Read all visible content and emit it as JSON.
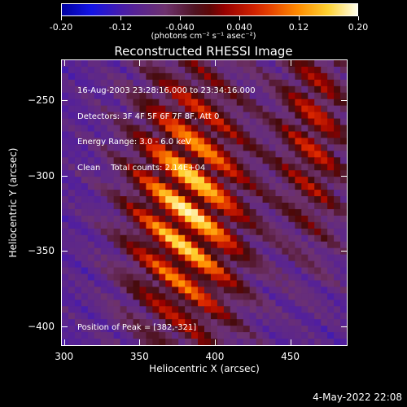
{
  "chart_data": {
    "type": "heatmap",
    "title": "Reconstructed RHESSI Image",
    "xlabel": "Heliocentric X (arcsec)",
    "ylabel": "Heliocentric Y (arcsec)",
    "xlim": [
      298,
      488
    ],
    "ylim": [
      -413,
      -223
    ],
    "x_ticks": [
      "300",
      "350",
      "400",
      "450"
    ],
    "y_ticks": [
      "-250",
      "-300",
      "-350",
      "-400"
    ],
    "colorbar": {
      "range": [
        -0.2,
        0.2
      ],
      "ticks": [
        "-0.20",
        "-0.12",
        "-0.040",
        "0.040",
        "0.12",
        "0.20"
      ],
      "unit": "(photons cm⁻² s⁻¹ asec⁻²)"
    },
    "annotation_lines": [
      "16-Aug-2003 23:28:16.000 to 23:34:16.000",
      "Detectors: 3F 4F 5F 6F 7F 8F, Att 0",
      "Energy Range: 3.0 - 6.0 keV",
      "Clean    Total counts: 2.14E+04"
    ],
    "peak_text": "Position of Peak = [382,-321]",
    "peak": [
      382,
      -321
    ],
    "grid": false
  },
  "footer": {
    "date": "4-May-2022 22:08"
  }
}
